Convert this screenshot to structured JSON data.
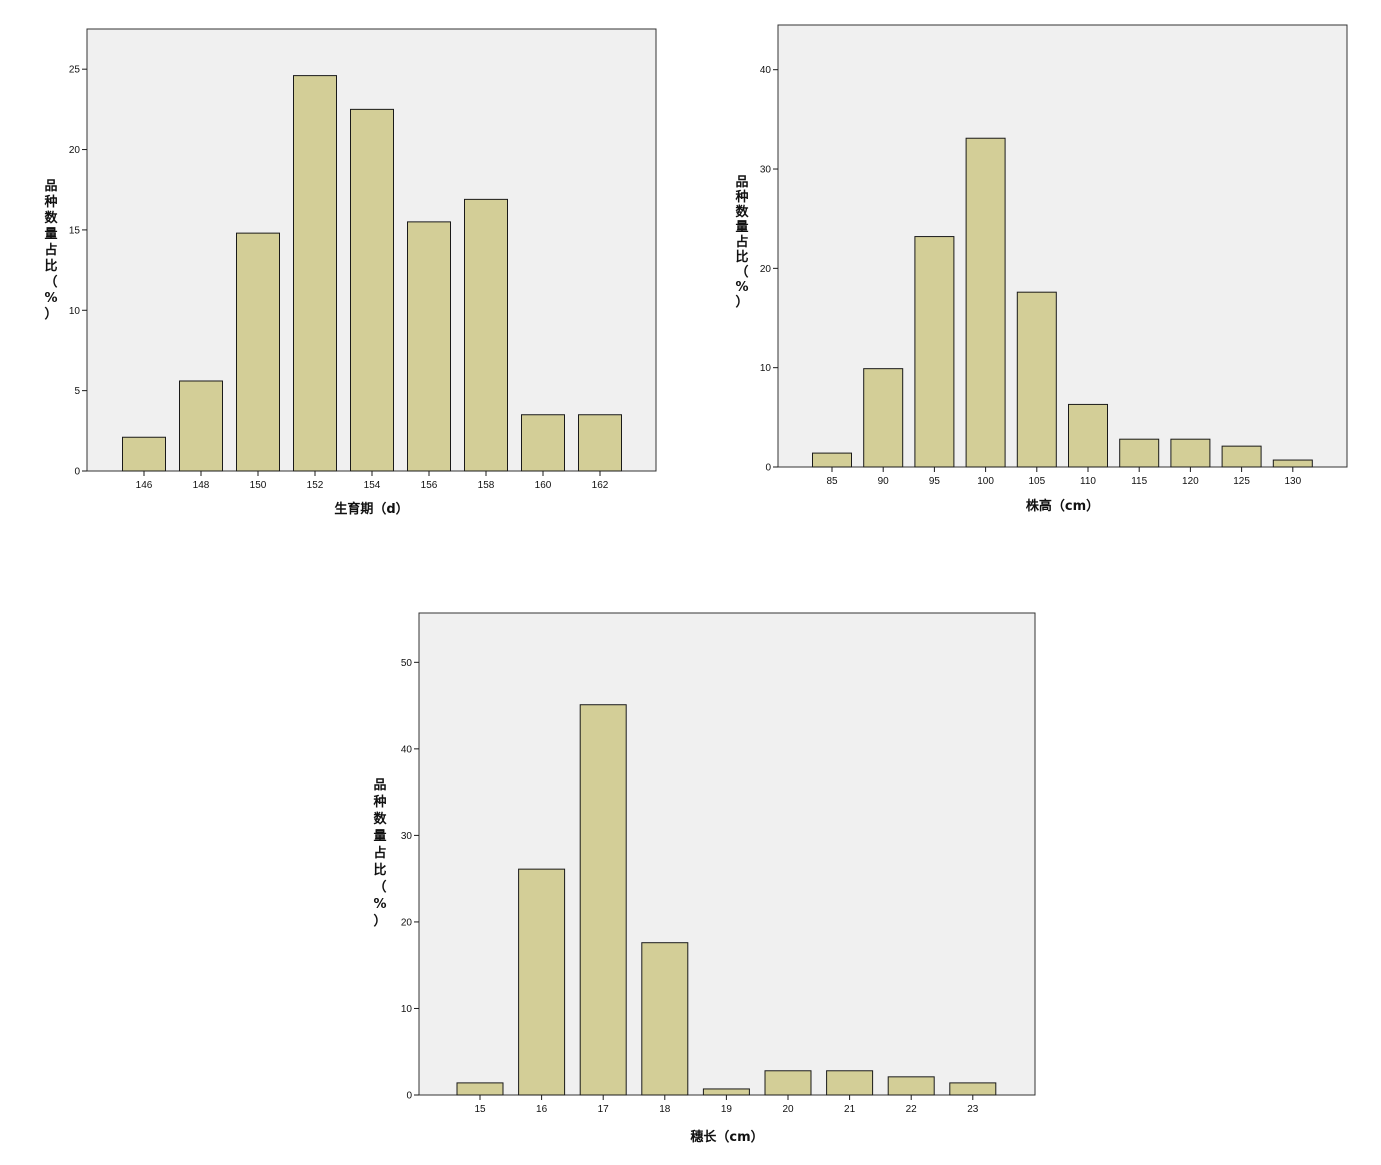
{
  "chart_data": [
    {
      "type": "bar",
      "categories": [
        "146",
        "148",
        "150",
        "152",
        "154",
        "156",
        "158",
        "160",
        "162"
      ],
      "values": [
        2.1,
        5.6,
        14.8,
        24.6,
        22.5,
        15.5,
        16.9,
        3.5,
        3.5
      ],
      "xlabel": "生育期（d）",
      "ylabel_lines": [
        "品",
        "种",
        "数",
        "量",
        "占",
        "比",
        "（",
        "%",
        "）"
      ],
      "ylim": [
        0,
        27.5
      ],
      "yticks": [
        0,
        5,
        10,
        15,
        20,
        25
      ],
      "grid": false,
      "bar_color": "#d3ce97",
      "plot_bg": "#f0f0f0"
    },
    {
      "type": "bar",
      "categories": [
        "85",
        "90",
        "95",
        "100",
        "105",
        "110",
        "115",
        "120",
        "125",
        "130"
      ],
      "values": [
        1.4,
        9.9,
        23.2,
        33.1,
        17.6,
        6.3,
        2.8,
        2.8,
        2.1,
        0.7
      ],
      "xlabel": "株高（cm）",
      "ylabel_lines": [
        "品",
        "种",
        "数",
        "量",
        "占",
        "比",
        "（",
        "%",
        "）"
      ],
      "ylim": [
        0,
        44.5
      ],
      "yticks": [
        0,
        10,
        20,
        30,
        40
      ],
      "grid": false,
      "bar_color": "#d3ce97",
      "plot_bg": "#f0f0f0"
    },
    {
      "type": "bar",
      "categories": [
        "15",
        "16",
        "17",
        "18",
        "19",
        "20",
        "21",
        "22",
        "23"
      ],
      "values": [
        1.4,
        26.1,
        45.1,
        17.6,
        0.7,
        2.8,
        2.8,
        2.1,
        1.4
      ],
      "xlabel": "穗长（cm）",
      "ylabel_lines": [
        "品",
        "种",
        "数",
        "量",
        "占",
        "比",
        "（",
        "%",
        "）"
      ],
      "ylim": [
        0,
        55.7
      ],
      "yticks": [
        0,
        10,
        20,
        30,
        40,
        50
      ],
      "grid": false,
      "bar_color": "#d3ce97",
      "plot_bg": "#f0f0f0"
    }
  ]
}
